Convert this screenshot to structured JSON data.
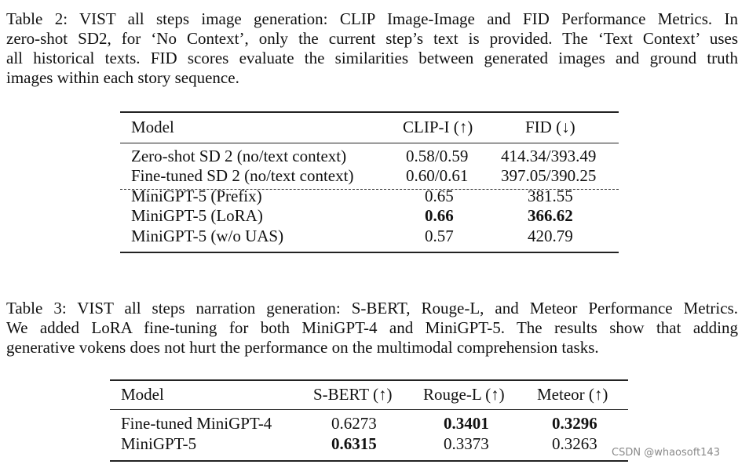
{
  "table2": {
    "caption_lines": [
      "Table 2: VIST all steps image generation: CLIP Image-Image and FID Performance Metrics. In",
      "zero-shot SD2, for ‘No Context’, only the current step’s text is provided. The ‘Text Context’ uses",
      "all historical texts. FID scores evaluate the similarities between generated images and ground truth",
      "images within each story sequence."
    ],
    "headers": [
      "Model",
      "CLIP-I (↑)",
      "FID (↓)"
    ],
    "rows": [
      {
        "model": "Zero-shot SD 2 (no/text context)",
        "clip": "0.58/0.59",
        "fid": "414.34/393.49"
      },
      {
        "model": "Fine-tuned SD 2 (no/text context)",
        "clip": "0.60/0.61",
        "fid": "397.05/390.25"
      },
      {
        "model": "MiniGPT-5 (Prefix)",
        "clip": "0.65",
        "fid": "381.55"
      },
      {
        "model": "MiniGPT-5 (LoRA)",
        "clip": "0.66",
        "fid": "366.62"
      },
      {
        "model": "MiniGPT-5 (w/o UAS)",
        "clip": "0.57",
        "fid": "420.79"
      }
    ]
  },
  "table3": {
    "caption_lines": [
      "Table 3: VIST all steps narration generation: S-BERT, Rouge-L, and Meteor Performance Metrics.",
      "We added LoRA fine-tuning for both MiniGPT-4 and MiniGPT-5. The results show that adding",
      "generative vokens does not hurt the performance on the multimodal comprehension tasks."
    ],
    "headers": [
      "Model",
      "S-BERT (↑)",
      "Rouge-L (↑)",
      "Meteor (↑)"
    ],
    "rows": [
      {
        "model": "Fine-tuned MiniGPT-4",
        "sbert": "0.6273",
        "rouge": "0.3401",
        "meteor": "0.3296"
      },
      {
        "model": "MiniGPT-5",
        "sbert": "0.6315",
        "rouge": "0.3373",
        "meteor": "0.3263"
      }
    ]
  },
  "watermark": "CSDN @whaosoft143"
}
